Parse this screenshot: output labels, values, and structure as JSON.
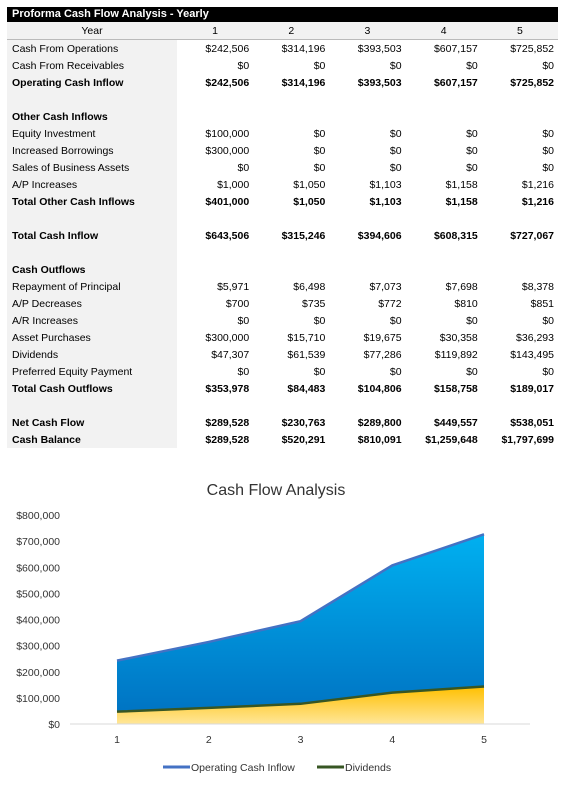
{
  "sheet": {
    "title": "Proforma Cash Flow Analysis - Yearly",
    "year_label": "Year",
    "years": [
      "1",
      "2",
      "3",
      "4",
      "5"
    ],
    "rows": [
      {
        "label": "Cash From Operations",
        "values": [
          "$242,506",
          "$314,196",
          "$393,503",
          "$607,157",
          "$725,852"
        ],
        "bold": false
      },
      {
        "label": "Cash From Receivables",
        "values": [
          "$0",
          "$0",
          "$0",
          "$0",
          "$0"
        ],
        "bold": false
      },
      {
        "label": "Operating Cash Inflow",
        "values": [
          "$242,506",
          "$314,196",
          "$393,503",
          "$607,157",
          "$725,852"
        ],
        "bold": true
      },
      {
        "blank": true
      },
      {
        "label": "Other Cash Inflows",
        "values": [
          "",
          "",
          "",
          "",
          ""
        ],
        "bold": true
      },
      {
        "label": "Equity Investment",
        "values": [
          "$100,000",
          "$0",
          "$0",
          "$0",
          "$0"
        ],
        "bold": false
      },
      {
        "label": "Increased Borrowings",
        "values": [
          "$300,000",
          "$0",
          "$0",
          "$0",
          "$0"
        ],
        "bold": false
      },
      {
        "label": "Sales of Business Assets",
        "values": [
          "$0",
          "$0",
          "$0",
          "$0",
          "$0"
        ],
        "bold": false
      },
      {
        "label": "A/P Increases",
        "values": [
          "$1,000",
          "$1,050",
          "$1,103",
          "$1,158",
          "$1,216"
        ],
        "bold": false
      },
      {
        "label": "Total Other Cash Inflows",
        "values": [
          "$401,000",
          "$1,050",
          "$1,103",
          "$1,158",
          "$1,216"
        ],
        "bold": true
      },
      {
        "blank": true
      },
      {
        "label": "Total Cash Inflow",
        "values": [
          "$643,506",
          "$315,246",
          "$394,606",
          "$608,315",
          "$727,067"
        ],
        "bold": true
      },
      {
        "blank": true
      },
      {
        "label": "Cash Outflows",
        "values": [
          "",
          "",
          "",
          "",
          ""
        ],
        "bold": true
      },
      {
        "label": "Repayment of Principal",
        "values": [
          "$5,971",
          "$6,498",
          "$7,073",
          "$7,698",
          "$8,378"
        ],
        "bold": false
      },
      {
        "label": "A/P Decreases",
        "values": [
          "$700",
          "$735",
          "$772",
          "$810",
          "$851"
        ],
        "bold": false
      },
      {
        "label": "A/R Increases",
        "values": [
          "$0",
          "$0",
          "$0",
          "$0",
          "$0"
        ],
        "bold": false
      },
      {
        "label": "Asset Purchases",
        "values": [
          "$300,000",
          "$15,710",
          "$19,675",
          "$30,358",
          "$36,293"
        ],
        "bold": false
      },
      {
        "label": "Dividends",
        "values": [
          "$47,307",
          "$61,539",
          "$77,286",
          "$119,892",
          "$143,495"
        ],
        "bold": false
      },
      {
        "label": "Preferred Equity Payment",
        "values": [
          "$0",
          "$0",
          "$0",
          "$0",
          "$0"
        ],
        "bold": false
      },
      {
        "label": "Total Cash Outflows",
        "values": [
          "$353,978",
          "$84,483",
          "$104,806",
          "$158,758",
          "$189,017"
        ],
        "bold": true
      },
      {
        "blank": true
      },
      {
        "label": "Net Cash Flow",
        "values": [
          "$289,528",
          "$230,763",
          "$289,800",
          "$449,557",
          "$538,051"
        ],
        "bold": true
      },
      {
        "label": "Cash Balance",
        "values": [
          "$289,528",
          "$520,291",
          "$810,091",
          "$1,259,648",
          "$1,797,699"
        ],
        "bold": true
      }
    ]
  },
  "chart_data": {
    "type": "area",
    "title": "Cash Flow Analysis",
    "categories": [
      "1",
      "2",
      "3",
      "4",
      "5"
    ],
    "series": [
      {
        "name": "Operating Cash Inflow",
        "values": [
          242506,
          314196,
          393503,
          607157,
          725852
        ],
        "line_color": "#4472c4",
        "fill_top": "#00b0f0",
        "fill_bottom": "#0070c0"
      },
      {
        "name": "Dividends",
        "values": [
          47307,
          61539,
          77286,
          119892,
          143495
        ],
        "line_color": "#375623",
        "fill_top": "#ffc000",
        "fill_bottom": "#ffe699"
      }
    ],
    "ylim": [
      0,
      800000
    ],
    "yticks": [
      "$0",
      "$100,000",
      "$200,000",
      "$300,000",
      "$400,000",
      "$500,000",
      "$600,000",
      "$700,000",
      "$800,000"
    ],
    "legend_position": "bottom",
    "grid": false
  }
}
